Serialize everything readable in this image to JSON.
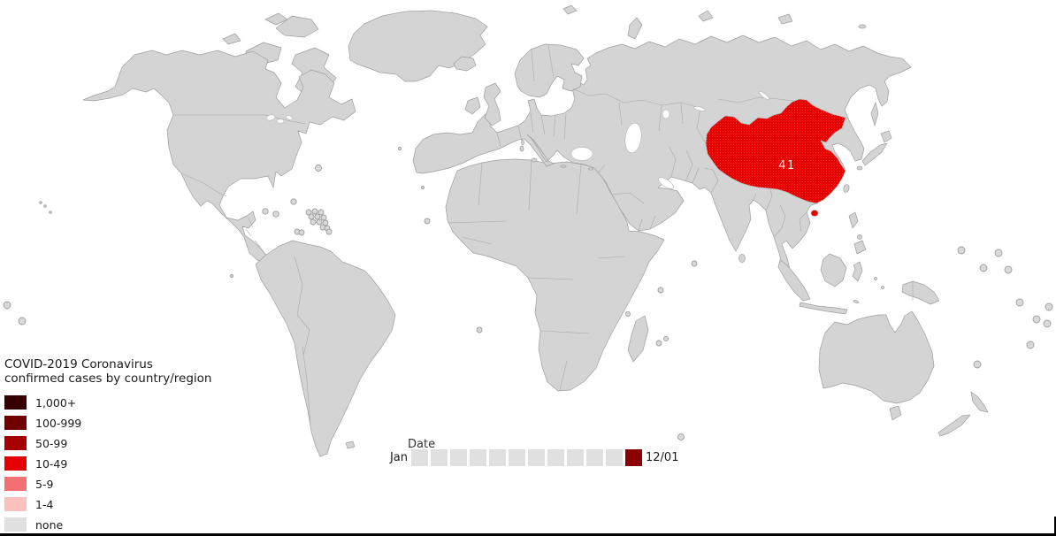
{
  "map": {
    "annotation_value": "41",
    "highlighted_region": "China",
    "land_color": "#d4d4d4",
    "border_color": "#9e9e9e",
    "highlight_color": "#e60000",
    "ocean_color": "#ffffff"
  },
  "legend": {
    "title_line1": "COVID-2019 Coronavirus",
    "title_line2": "confirmed cases by country/region",
    "items": [
      {
        "label": "1,000+",
        "color": "#360000"
      },
      {
        "label": "100-999",
        "color": "#700000"
      },
      {
        "label": "50-99",
        "color": "#a40000"
      },
      {
        "label": "10-49",
        "color": "#e60000"
      },
      {
        "label": "5-9",
        "color": "#f57070"
      },
      {
        "label": "1-4",
        "color": "#fcc1bd"
      },
      {
        "label": "none",
        "color": "#e0e0e0"
      }
    ]
  },
  "slider": {
    "axis_label": "Date",
    "start_label": "Jan",
    "current_label": "12/01",
    "total_steps": 12,
    "selected_step_index": 11,
    "inactive_color": "#e0e0e0",
    "active_color": "#8b0000"
  },
  "chart_data": {
    "type": "choropleth_map",
    "title": "COVID-2019 Coronavirus confirmed cases by country/region",
    "date_shown": "12/01",
    "date_axis_start": "Jan",
    "data_points": [
      {
        "region": "China",
        "confirmed_cases": 41,
        "bin": "10-49",
        "label_shown": "41"
      }
    ],
    "all_other_regions": "none",
    "legend_bins": [
      "1,000+",
      "100-999",
      "50-99",
      "10-49",
      "5-9",
      "1-4",
      "none"
    ]
  }
}
